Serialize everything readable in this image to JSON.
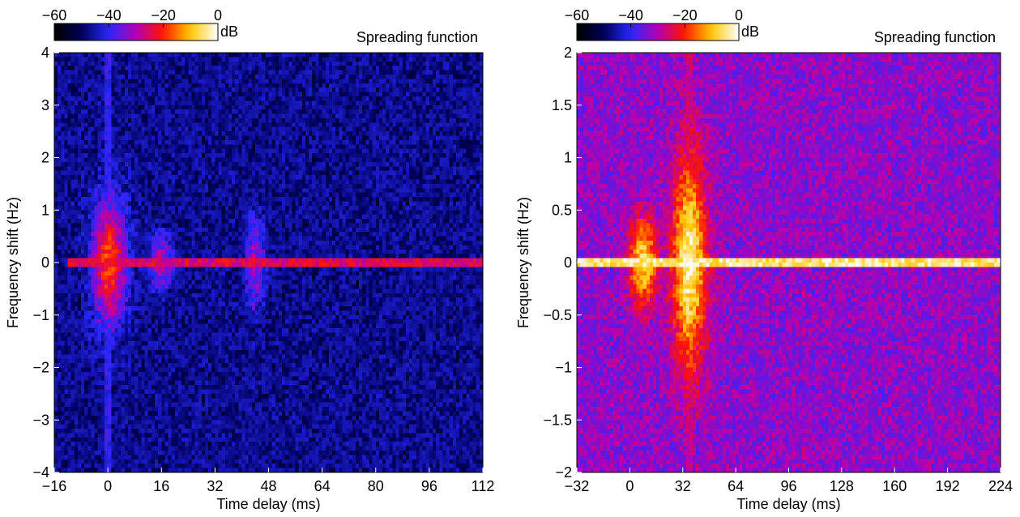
{
  "chart_data": [
    {
      "type": "heatmap",
      "title": "Spreading function",
      "xlabel": "Time delay  (ms)",
      "ylabel": "Frequency shift  (Hz)",
      "xlim": [
        -16,
        112
      ],
      "ylim": [
        -4,
        4
      ],
      "x_ticks": [
        -16,
        0,
        16,
        32,
        48,
        64,
        80,
        96,
        112
      ],
      "y_ticks": [
        -4,
        -3,
        -2,
        -1,
        0,
        1,
        2,
        3,
        4
      ],
      "colorbar": {
        "unit": "dB",
        "range": [
          -60,
          0
        ],
        "ticks": [
          "−60",
          "−40",
          "−20",
          "0"
        ]
      },
      "features": [
        {
          "kind": "doppler_line",
          "freq": 0,
          "x_from": -12,
          "x_to": 112,
          "level_db": -25
        },
        {
          "kind": "vertical_line",
          "delay": 0,
          "level_db": -40
        },
        {
          "kind": "arrival",
          "delay": 0.5,
          "freq": 0,
          "spread_hz": 1.2,
          "level_db": -18
        },
        {
          "kind": "arrival",
          "delay": 16,
          "freq": 0,
          "spread_hz": 0.8,
          "level_db": -30
        },
        {
          "kind": "arrival",
          "delay": 44,
          "freq": 0,
          "spread_hz": 1.5,
          "level_db": -33
        }
      ]
    },
    {
      "type": "heatmap",
      "title": "Spreading function",
      "xlabel": "Time delay  (ms)",
      "ylabel": "Frequency shift  (Hz)",
      "xlim": [
        -32,
        224
      ],
      "ylim": [
        -2,
        2
      ],
      "x_ticks": [
        -32,
        0,
        32,
        64,
        96,
        128,
        160,
        192,
        224
      ],
      "y_ticks": [
        -2,
        -1.5,
        -1,
        -0.5,
        0,
        0.5,
        1,
        1.5,
        2
      ],
      "colorbar": {
        "unit": "dB",
        "range": [
          -60,
          0
        ],
        "ticks": [
          "−60",
          "−40",
          "−20",
          "0"
        ]
      },
      "features": [
        {
          "kind": "doppler_line",
          "freq": 0,
          "x_from": -32,
          "x_to": 224,
          "level_db": -5
        },
        {
          "kind": "arrival",
          "delay": 8,
          "freq": 0,
          "spread_hz": 0.5,
          "level_db": -8
        },
        {
          "kind": "arrival",
          "delay": 36,
          "freq": 0,
          "spread_hz": 1.0,
          "level_db": -3
        },
        {
          "kind": "vertical_line",
          "delay": 8,
          "level_db": -40
        },
        {
          "kind": "vertical_line",
          "delay": 36,
          "level_db": -28
        }
      ]
    }
  ]
}
